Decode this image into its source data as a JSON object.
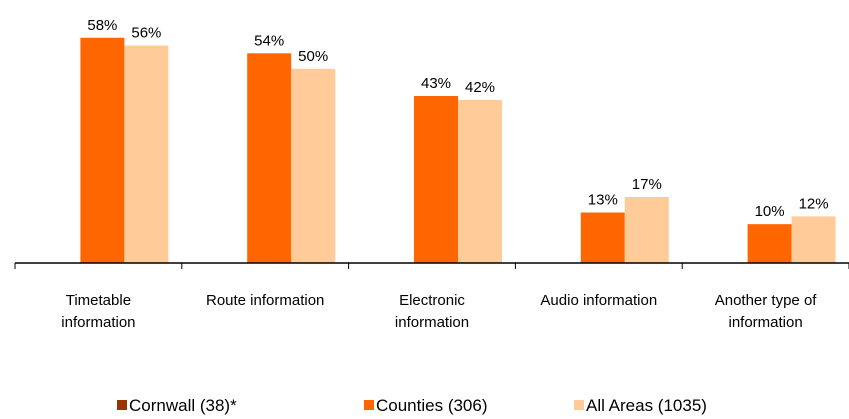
{
  "chart_data": {
    "type": "bar",
    "categories": [
      "Timetable information",
      "Route information",
      "Electronic information",
      "Audio information",
      "Another type of information"
    ],
    "series": [
      {
        "name": "Cornwall (38)*",
        "color": "#993300",
        "values": [
          null,
          null,
          null,
          null,
          null
        ]
      },
      {
        "name": "Counties (306)",
        "color": "#ff6600",
        "values": [
          58,
          54,
          43,
          13,
          10
        ],
        "value_labels": [
          "58%",
          "54%",
          "43%",
          "13%",
          "10%"
        ]
      },
      {
        "name": "All Areas (1035)",
        "color": "#ffcc99",
        "values": [
          56,
          50,
          42,
          17,
          12
        ],
        "value_labels": [
          "56%",
          "50%",
          "42%",
          "17%",
          "12%"
        ]
      }
    ],
    "ylim": [
      0,
      60
    ],
    "legend": "bottom"
  }
}
